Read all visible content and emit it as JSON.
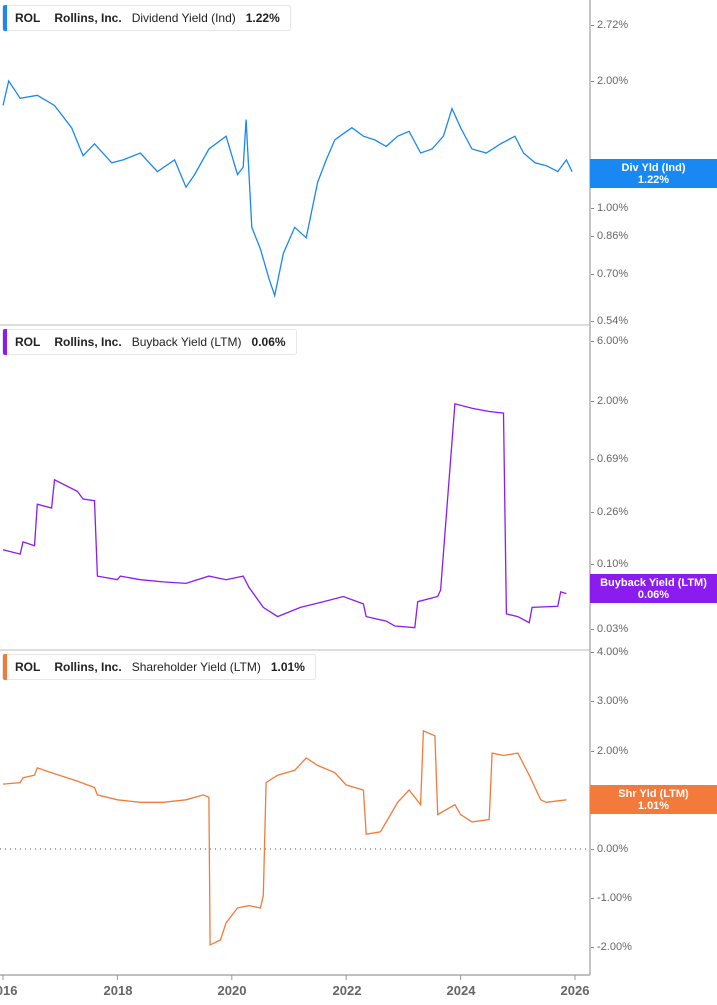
{
  "chart_data": [
    {
      "type": "line",
      "title": "ROL Rollins, Inc. Dividend Yield (Ind)",
      "ticker": "ROL",
      "company": "Rollins, Inc.",
      "metric": "Dividend Yield (Ind)",
      "current_value": "1.22%",
      "tag_label": "Div Yld (Ind)",
      "color": "#1a88f2",
      "yscale": "log",
      "ylim": [
        0.54,
        2.9
      ],
      "yticks": [
        "2.72%",
        "2.00%",
        "1.00%",
        "0.86%",
        "0.70%",
        "0.54%"
      ],
      "x": [
        2016.0,
        2016.1,
        2016.3,
        2016.6,
        2016.9,
        2017.2,
        2017.4,
        2017.6,
        2017.9,
        2018.1,
        2018.4,
        2018.7,
        2019.0,
        2019.2,
        2019.35,
        2019.6,
        2019.9,
        2020.1,
        2020.2,
        2020.25,
        2020.35,
        2020.5,
        2020.65,
        2020.75,
        2020.9,
        2021.1,
        2021.3,
        2021.5,
        2021.65,
        2021.8,
        2021.95,
        2022.1,
        2022.3,
        2022.5,
        2022.7,
        2022.9,
        2023.1,
        2023.3,
        2023.5,
        2023.7,
        2023.85,
        2024.0,
        2024.2,
        2024.45,
        2024.7,
        2024.95,
        2025.1,
        2025.3,
        2025.5,
        2025.7,
        2025.85,
        2025.95
      ],
      "values": [
        1.75,
        2.0,
        1.82,
        1.85,
        1.75,
        1.55,
        1.33,
        1.42,
        1.28,
        1.3,
        1.35,
        1.22,
        1.3,
        1.12,
        1.2,
        1.38,
        1.48,
        1.2,
        1.25,
        1.62,
        0.9,
        0.8,
        0.68,
        0.62,
        0.78,
        0.9,
        0.85,
        1.15,
        1.3,
        1.45,
        1.5,
        1.55,
        1.48,
        1.45,
        1.4,
        1.48,
        1.52,
        1.35,
        1.38,
        1.48,
        1.72,
        1.55,
        1.38,
        1.35,
        1.42,
        1.48,
        1.35,
        1.28,
        1.26,
        1.22,
        1.3,
        1.22
      ]
    },
    {
      "type": "line",
      "title": "ROL Rollins, Inc. Buyback Yield (LTM)",
      "ticker": "ROL",
      "company": "Rollins, Inc.",
      "metric": "Buyback Yield (LTM)",
      "current_value": "0.06%",
      "tag_label": "Buyback Yield (LTM)",
      "color": "#8b1cf0",
      "yscale": "log",
      "ylim": [
        0.025,
        6.0
      ],
      "yticks": [
        "6.00%",
        "2.00%",
        "0.69%",
        "0.26%",
        "0.10%",
        "0.03%"
      ],
      "x": [
        2016.0,
        2016.3,
        2016.35,
        2016.55,
        2016.6,
        2016.85,
        2016.9,
        2017.3,
        2017.4,
        2017.6,
        2017.65,
        2018.0,
        2018.05,
        2018.4,
        2018.8,
        2019.2,
        2019.6,
        2019.9,
        2020.2,
        2020.3,
        2020.55,
        2020.8,
        2021.2,
        2021.6,
        2021.95,
        2022.3,
        2022.35,
        2022.7,
        2022.85,
        2023.2,
        2023.25,
        2023.6,
        2023.65,
        2023.9,
        2024.2,
        2024.5,
        2024.75,
        2024.8,
        2025.0,
        2025.2,
        2025.25,
        2025.7,
        2025.75,
        2025.85
      ],
      "values": [
        0.13,
        0.12,
        0.15,
        0.14,
        0.3,
        0.28,
        0.47,
        0.38,
        0.33,
        0.32,
        0.08,
        0.075,
        0.08,
        0.075,
        0.072,
        0.07,
        0.08,
        0.075,
        0.08,
        0.065,
        0.045,
        0.038,
        0.045,
        0.05,
        0.055,
        0.048,
        0.038,
        0.035,
        0.032,
        0.031,
        0.05,
        0.055,
        0.062,
        1.9,
        1.75,
        1.65,
        1.6,
        0.04,
        0.038,
        0.034,
        0.045,
        0.046,
        0.06,
        0.058
      ]
    },
    {
      "type": "line",
      "title": "ROL Rollins, Inc. Shareholder Yield (LTM)",
      "ticker": "ROL",
      "company": "Rollins, Inc.",
      "metric": "Shareholder Yield (LTM)",
      "current_value": "1.01%",
      "tag_label": "Shr Yld (LTM)",
      "color": "#f47a3c",
      "yscale": "linear",
      "ylim": [
        -2.5,
        4.0
      ],
      "yticks": [
        "4.00%",
        "3.00%",
        "2.00%",
        "1.00%",
        "0.00%",
        "-1.00%",
        "-2.00%"
      ],
      "zero_line": true,
      "x": [
        2016.0,
        2016.3,
        2016.35,
        2016.55,
        2016.6,
        2016.85,
        2017.3,
        2017.6,
        2017.65,
        2018.0,
        2018.4,
        2018.8,
        2019.2,
        2019.5,
        2019.6,
        2019.62,
        2019.8,
        2019.9,
        2020.1,
        2020.3,
        2020.5,
        2020.55,
        2020.6,
        2020.8,
        2021.1,
        2021.3,
        2021.5,
        2021.8,
        2022.0,
        2022.3,
        2022.35,
        2022.6,
        2022.9,
        2023.1,
        2023.3,
        2023.35,
        2023.55,
        2023.6,
        2023.9,
        2024.0,
        2024.2,
        2024.5,
        2024.55,
        2024.75,
        2025.0,
        2025.2,
        2025.4,
        2025.5,
        2025.85
      ],
      "values": [
        1.32,
        1.35,
        1.45,
        1.5,
        1.65,
        1.55,
        1.38,
        1.25,
        1.1,
        1.0,
        0.95,
        0.95,
        1.0,
        1.1,
        1.05,
        -1.95,
        -1.85,
        -1.5,
        -1.2,
        -1.15,
        -1.2,
        -0.95,
        1.35,
        1.5,
        1.6,
        1.85,
        1.7,
        1.55,
        1.3,
        1.2,
        0.3,
        0.35,
        0.95,
        1.2,
        0.9,
        2.4,
        2.3,
        0.7,
        0.9,
        0.7,
        0.55,
        0.6,
        1.95,
        1.9,
        1.95,
        1.5,
        1.0,
        0.95,
        1.0
      ]
    }
  ],
  "xaxis": {
    "ticks": [
      {
        "label": "2016",
        "year": 2016
      },
      {
        "label": "2018",
        "year": 2018
      },
      {
        "label": "2020",
        "year": 2020
      },
      {
        "label": "2022",
        "year": 2022
      },
      {
        "label": "2024",
        "year": 2024
      },
      {
        "label": "2026",
        "year": 2026
      }
    ]
  },
  "panels": [
    {
      "legend": {
        "ticker": "ROL",
        "company": "Rollins, Inc.",
        "metric": "Dividend Yield (Ind)",
        "value": "1.22%"
      },
      "tag": {
        "label": "Div Yld (Ind)",
        "value": "1.22%"
      }
    },
    {
      "legend": {
        "ticker": "ROL",
        "company": "Rollins, Inc.",
        "metric": "Buyback Yield (LTM)",
        "value": "0.06%"
      },
      "tag": {
        "label": "Buyback Yield (LTM)",
        "value": "0.06%"
      }
    },
    {
      "legend": {
        "ticker": "ROL",
        "company": "Rollins, Inc.",
        "metric": "Shareholder Yield (LTM)",
        "value": "1.01%"
      },
      "tag": {
        "label": "Shr Yld (LTM)",
        "value": "1.01%"
      }
    }
  ],
  "yticks_panel1": [
    "2.72%",
    "2.00%",
    "1.00%",
    "0.86%",
    "0.70%",
    "0.54%"
  ],
  "yticks_panel2": [
    "6.00%",
    "2.00%",
    "0.69%",
    "0.26%",
    "0.10%",
    "0.03%"
  ],
  "yticks_panel3": [
    "4.00%",
    "3.00%",
    "2.00%",
    "1.00%",
    "0.00%",
    "-1.00%",
    "-2.00%"
  ]
}
